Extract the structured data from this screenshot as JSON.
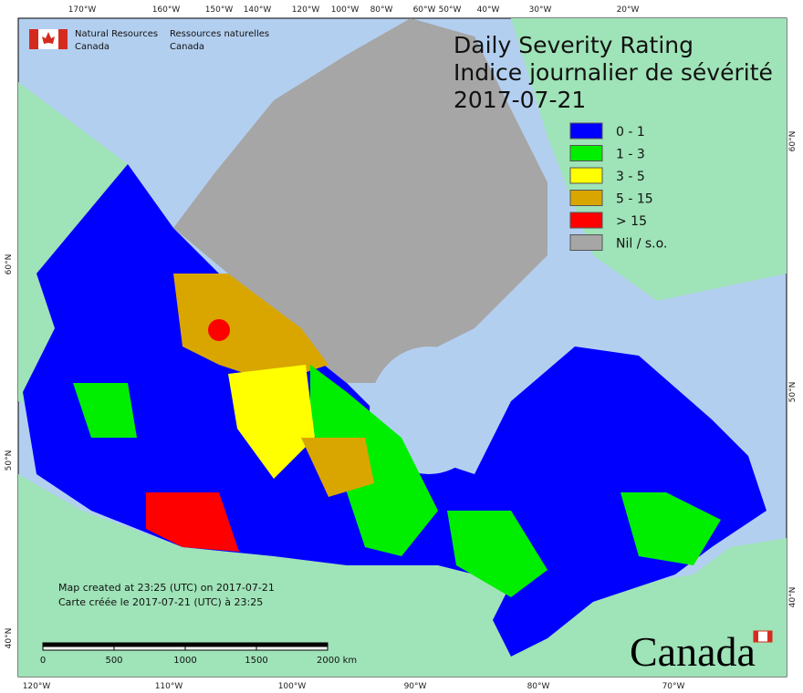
{
  "header": {
    "agency_en": [
      "Natural Resources",
      "Canada"
    ],
    "agency_fr": [
      "Ressources naturelles",
      "Canada"
    ]
  },
  "title": {
    "line1": "Daily Severity Rating",
    "line2": "Indice journalier de sévérité",
    "date": "2017-07-21"
  },
  "legend": [
    {
      "label": "0 - 1",
      "color": "#0000ff"
    },
    {
      "label": "1 - 3",
      "color": "#00ee00"
    },
    {
      "label": "3 - 5",
      "color": "#ffff00"
    },
    {
      "label": "5 - 15",
      "color": "#d9a600"
    },
    {
      "label": "> 15",
      "color": "#ff0000"
    },
    {
      "label": "Nil / s.o.",
      "color": "#a6a6a6"
    }
  ],
  "graticule": {
    "top": [
      "170°W",
      "160°W",
      "150°W",
      "140°W",
      "120°W",
      "100°W",
      "80°W",
      "60°W",
      "50°W",
      "40°W",
      "30°W",
      "20°W"
    ],
    "bottom": [
      "120°W",
      "110°W",
      "100°W",
      "90°W",
      "80°W",
      "70°W"
    ],
    "left": [
      "60°N",
      "50°N",
      "40°N"
    ],
    "right": [
      "60°N",
      "50°N",
      "40°N"
    ]
  },
  "notes": [
    "Map created at 23:25 (UTC) on 2017-07-21",
    "Carte créée le 2017-07-21 (UTC) à 23:25"
  ],
  "scale_bar": [
    "0",
    "500",
    "1000",
    "1500",
    "2000 km"
  ],
  "wordmark": "Canada"
}
